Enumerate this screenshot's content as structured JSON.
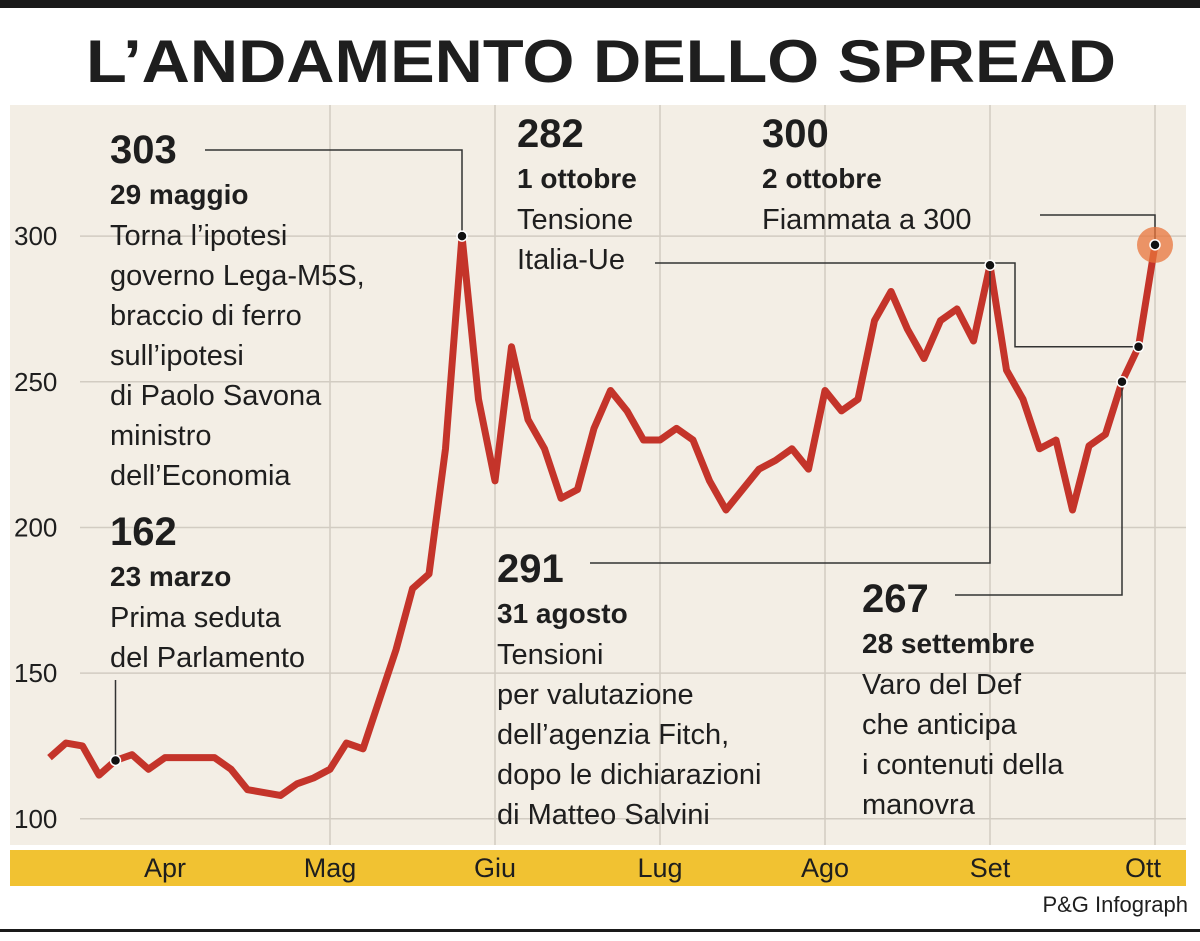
{
  "chart_data": {
    "type": "line",
    "title": "L’ANDAMENTO DELLO SPREAD",
    "source": "P&G Infograph",
    "color": "#c4342a",
    "categories": [
      null,
      null,
      null,
      null,
      null,
      null,
      null,
      "Apr",
      null,
      null,
      null,
      null,
      null,
      null,
      null,
      null,
      null,
      "Mag",
      null,
      null,
      null,
      null,
      null,
      null,
      null,
      null,
      null,
      "Giu",
      null,
      null,
      null,
      null,
      null,
      null,
      null,
      null,
      null,
      "Lug",
      null,
      null,
      null,
      null,
      null,
      null,
      null,
      null,
      null,
      "Ago",
      null,
      null,
      null,
      null,
      null,
      null,
      null,
      null,
      null,
      "Set",
      null,
      null,
      null,
      null,
      null,
      null,
      null,
      null,
      null,
      "Ott"
    ],
    "values": [
      121,
      126,
      125,
      115,
      120,
      122,
      117,
      121,
      121,
      121,
      121,
      117,
      110,
      109,
      108,
      112,
      114,
      117,
      126,
      124,
      141,
      158,
      179,
      184,
      227,
      300,
      244,
      216,
      262,
      237,
      227,
      210,
      213,
      234,
      247,
      240,
      230,
      230,
      234,
      230,
      216,
      206,
      213,
      220,
      223,
      227,
      220,
      247,
      240,
      244,
      271,
      281,
      268,
      258,
      271,
      275,
      264,
      290,
      254,
      244,
      227,
      230,
      206,
      228,
      232,
      250,
      262,
      297
    ],
    "ylim": [
      91,
      345
    ],
    "yticks": [
      100,
      150,
      200,
      250,
      300
    ],
    "grid": true,
    "annotations": [
      {
        "value": 303,
        "date": "29 maggio",
        "lines": [
          "Torna l’ipotesi",
          "governo Lega-M5S,",
          "braccio di ferro",
          "sull’ipotesi",
          "di Paolo Savona",
          "ministro",
          "dell’Economia"
        ]
      },
      {
        "value": 162,
        "date": "23 marzo",
        "lines": [
          "Prima seduta",
          "del Parlamento"
        ]
      },
      {
        "value": 282,
        "date": "1 ottobre",
        "lines": [
          "Tensione",
          "Italia-Ue"
        ]
      },
      {
        "value": 300,
        "date": "2 ottobre",
        "lines": [
          "Fiammata a 300"
        ]
      },
      {
        "value": 291,
        "date": "31 agosto",
        "lines": [
          "Tensioni",
          "per valutazione",
          "dell’agenzia Fitch,",
          "dopo le dichiarazioni",
          "di Matteo Salvini"
        ]
      },
      {
        "value": 267,
        "date": "28 settembre",
        "lines": [
          "Varo del Def",
          "che anticipa",
          "i contenuti della",
          "manovra"
        ]
      }
    ]
  }
}
